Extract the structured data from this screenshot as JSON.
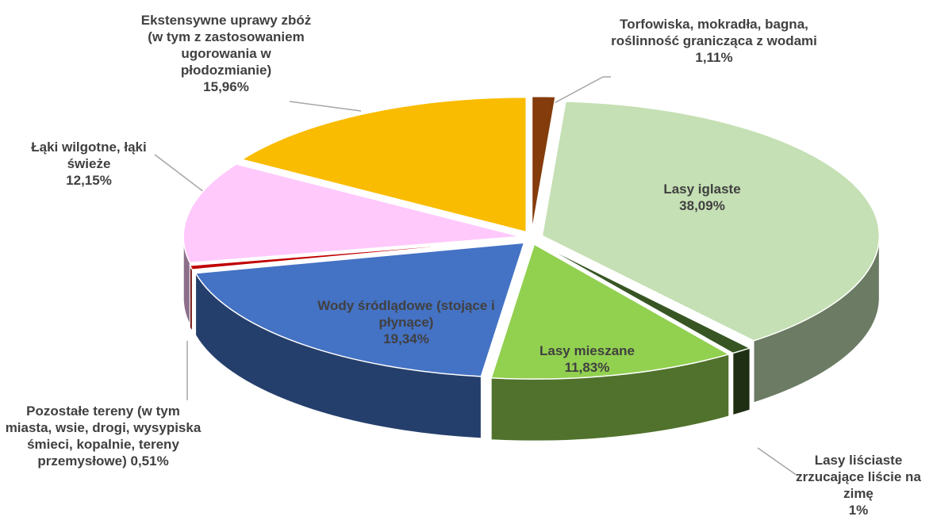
{
  "chart_data": {
    "type": "pie3d",
    "categories": [
      "Torfowiska, mokradła, bagna, roślinność granicząca z wodami",
      "Lasy iglaste",
      "Lasy liściaste zrzucające liście na zimę",
      "Lasy mieszane",
      "Wody śródlądowe (stojące i płynące)",
      "Pozostałe tereny (w tym miasta, wsie, drogi, wysypiska śmieci, kopalnie, tereny przemysłowe)",
      "Łąki wilgotne, łąki świeże",
      "Ekstensywne uprawy zbóż (w tym z zastosowaniem ugorowania w płodozmianie)"
    ],
    "values": [
      1.11,
      38.09,
      1,
      11.83,
      19.34,
      0.51,
      12.15,
      15.96
    ],
    "value_labels": [
      "1,11%",
      "38,09%",
      "1%",
      "11,83%",
      "19,34%",
      "0,51%",
      "12,15%",
      "15,96%"
    ],
    "colors": [
      "#843c0c",
      "#c5e0b4",
      "#375623",
      "#92d050",
      "#4472c4",
      "#c00000",
      "#ffc9fc",
      "#f9bc00"
    ]
  }
}
